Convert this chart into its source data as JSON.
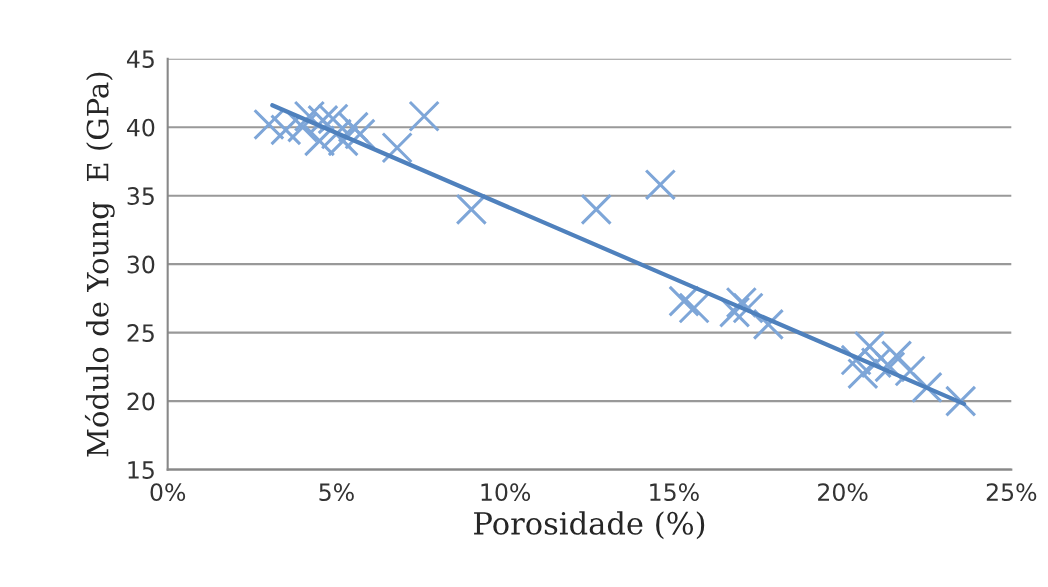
{
  "chart_data": {
    "type": "scatter",
    "xlabel": "Porosidade (%)",
    "ylabel": "Módulo de Young  E (GPa)",
    "grid": "y",
    "legend": false,
    "xlim": [
      0,
      25
    ],
    "xticks": [
      {
        "value": 0,
        "label": "0%"
      },
      {
        "value": 5,
        "label": "5%"
      },
      {
        "value": 10,
        "label": "10%"
      },
      {
        "value": 15,
        "label": "15%"
      },
      {
        "value": 20,
        "label": "20%"
      },
      {
        "value": 25,
        "label": "25%"
      }
    ],
    "ylim": [
      15,
      45
    ],
    "yticks": [
      15,
      20,
      25,
      30,
      35,
      40,
      45
    ],
    "series": [
      {
        "marker": "cross",
        "color": "#7ea6d8",
        "x": [
          3.0,
          3.5,
          4.0,
          4.2,
          4.5,
          4.6,
          4.9,
          5.0,
          5.2,
          5.5,
          5.7,
          6.8,
          7.6,
          9.0,
          12.7,
          14.6,
          15.3,
          15.6,
          16.8,
          17.0,
          17.2,
          17.8,
          20.4,
          20.6,
          20.8,
          21.0,
          21.4,
          21.6,
          22.0,
          22.5,
          23.5
        ],
        "values": [
          40.2,
          39.8,
          40.0,
          40.8,
          39.0,
          40.5,
          40.6,
          39.5,
          39.0,
          40.0,
          39.5,
          38.5,
          40.8,
          34.0,
          34.0,
          35.8,
          27.3,
          26.8,
          26.5,
          27.2,
          26.8,
          25.6,
          23.0,
          22.0,
          24.0,
          22.8,
          22.5,
          23.3,
          22.2,
          21.0,
          20.0
        ]
      },
      {
        "type": "line",
        "marker": "none",
        "color": "#4f81bd",
        "x": [
          3.1,
          23.6
        ],
        "values": [
          41.6,
          19.8
        ]
      }
    ]
  }
}
